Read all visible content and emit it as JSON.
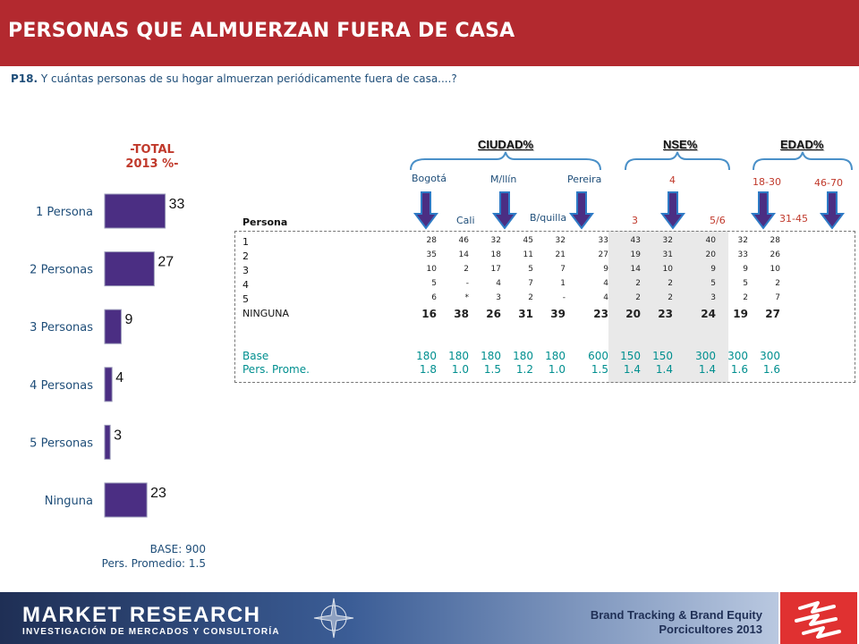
{
  "header": {
    "title": "PERSONAS QUE ALMUERZAN FUERA DE CASA"
  },
  "question": {
    "number": "P18.",
    "text": "Y cuántas personas de su hogar almuerzan periódicamente fuera de casa....?"
  },
  "total": {
    "heading_line1": "-TOTAL",
    "heading_line2": "2013 %-",
    "base": "BASE:   900",
    "promedio": "Pers. Promedio: 1.5"
  },
  "chart_data": {
    "type": "bar",
    "orientation": "horizontal",
    "categories": [
      "1 Persona",
      "2 Personas",
      "3 Personas",
      "4 Personas",
      "5 Personas",
      "Ninguna"
    ],
    "values": [
      33,
      27,
      9,
      4,
      3,
      23
    ],
    "bar_color": "#4b2e83"
  },
  "groups": {
    "ciudad": "CIUDAD%",
    "nse": "NSE%",
    "edad": "EDAD%"
  },
  "columns": {
    "bogota": "Bogotá",
    "cali": "Cali",
    "medellin": "M/llín",
    "bquilla": "B/quilla",
    "pereira": "Pereira",
    "nse3": "3",
    "nse4": "4",
    "nse56": "5/6",
    "e1830": "18-30",
    "e3145": "31-45",
    "e4670": "46-70"
  },
  "table": {
    "header_label": "Persona",
    "rows": [
      {
        "label": "1",
        "values": [
          "28",
          "46",
          "32",
          "45",
          "32",
          "33",
          "43",
          "32",
          "40",
          "32",
          "28"
        ]
      },
      {
        "label": "2",
        "values": [
          "35",
          "14",
          "18",
          "11",
          "21",
          "27",
          "19",
          "31",
          "20",
          "33",
          "26"
        ]
      },
      {
        "label": "3",
        "values": [
          "10",
          "2",
          "17",
          "5",
          "7",
          "9",
          "14",
          "10",
          "9",
          "9",
          "10"
        ]
      },
      {
        "label": "4",
        "values": [
          "5",
          "-",
          "4",
          "7",
          "1",
          "4",
          "2",
          "2",
          "5",
          "5",
          "2"
        ]
      },
      {
        "label": "5",
        "values": [
          "6",
          "*",
          "3",
          "2",
          "-",
          "4",
          "2",
          "2",
          "3",
          "2",
          "7"
        ]
      },
      {
        "label": "NINGUNA",
        "values": [
          "16",
          "38",
          "26",
          "31",
          "39",
          "23",
          "20",
          "23",
          "24",
          "19",
          "27"
        ]
      }
    ],
    "base": {
      "label": "Base",
      "values": [
        "180",
        "180",
        "180",
        "180",
        "180",
        "600",
        "150",
        "150",
        "300",
        "300",
        "300"
      ]
    },
    "promedio": {
      "label": "Pers. Prome.",
      "values": [
        "1.8",
        "1.0",
        "1.5",
        "1.2",
        "1.0",
        "1.5",
        "1.4",
        "1.4",
        "1.4",
        "1.6",
        "1.6"
      ]
    }
  },
  "footer": {
    "brand": "MARKET RESEARCH",
    "brand_sub": "INVESTIGACIÓN DE MERCADOS Y CONSULTORÍA",
    "study_line1": "Brand Tracking & Brand Equity",
    "study_line2": "Porcicultores 2013"
  },
  "colors": {
    "header": "#b3292f",
    "bar": "#4b2e83",
    "arrow": "#4b2e83",
    "teal": "#008f8f"
  }
}
